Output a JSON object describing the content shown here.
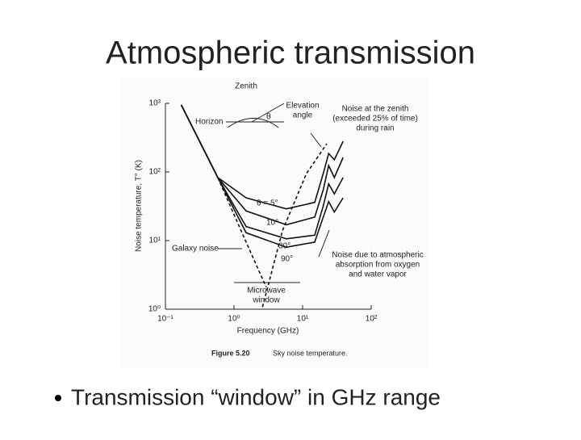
{
  "title": "Atmospheric transmission",
  "bullet": "Transmission “window” in GHz range",
  "chart_data": {
    "type": "line",
    "xlabel": "Frequency (GHz)",
    "ylabel": "Noise temperature, T° (K)",
    "caption": [
      "Figure 5.20",
      "Sky noise temperature."
    ],
    "log_x": true,
    "log_y": true,
    "xlim": [
      0.1,
      100
    ],
    "ylim": [
      1,
      1000
    ],
    "xticks": [
      {
        "value": 0.1,
        "label": "10⁻¹"
      },
      {
        "value": 1,
        "label": "10⁰"
      },
      {
        "value": 10,
        "label": "10¹"
      },
      {
        "value": 100,
        "label": "10²"
      }
    ],
    "yticks": [
      {
        "value": 1,
        "label": "10⁰"
      },
      {
        "value": 10,
        "label": "10¹"
      },
      {
        "value": 100,
        "label": "10²"
      },
      {
        "value": 1000,
        "label": "10³"
      }
    ],
    "series": [
      {
        "name": "θ = 5°",
        "color": "#111111",
        "style": "solid",
        "x": [
          0.17,
          0.58,
          1.5,
          5.8,
          15,
          20,
          24,
          29,
          39
        ],
        "values": [
          950,
          83,
          42,
          29,
          36,
          95,
          186,
          150,
          280
        ]
      },
      {
        "name": "10°",
        "color": "#111111",
        "style": "solid",
        "x": [
          0.17,
          0.58,
          1.5,
          5.8,
          15,
          20,
          24,
          29,
          39
        ],
        "values": [
          950,
          83,
          27,
          17,
          22,
          55,
          124,
          83,
          163
        ]
      },
      {
        "name": "30°",
        "color": "#111111",
        "style": "solid",
        "x": [
          0.17,
          0.58,
          1.5,
          5.8,
          15,
          20,
          24,
          29,
          39
        ],
        "values": [
          950,
          83,
          16,
          10.6,
          12,
          32,
          67,
          48,
          83
        ]
      },
      {
        "name": "90°",
        "color": "#111111",
        "style": "solid",
        "x": [
          0.17,
          0.58,
          1.5,
          5.8,
          15,
          20,
          24,
          29,
          39
        ],
        "values": [
          950,
          83,
          13,
          8,
          9.5,
          22,
          37,
          26,
          42
        ]
      },
      {
        "color": "#111111",
        "style": "dashed",
        "x": [
          0.58,
          1.5,
          2.95
        ],
        "values": [
          83,
          9.5,
          2.1
        ]
      },
      {
        "color": "#111111",
        "style": "dashed",
        "x": [
          2.6,
          5.1,
          11.4,
          22.5
        ],
        "values": [
          1.08,
          14,
          95,
          257
        ]
      }
    ],
    "annotations": [
      "Zenith",
      "Horizon",
      "Elevation",
      "angle",
      "θ",
      "Noise at the zenith",
      "(exceeded 25% of time)",
      "during rain",
      "Galaxy noise",
      "Noise due to atmospheric",
      "absorption from oxygen",
      "and water vapor",
      "Microwave",
      "window"
    ]
  }
}
